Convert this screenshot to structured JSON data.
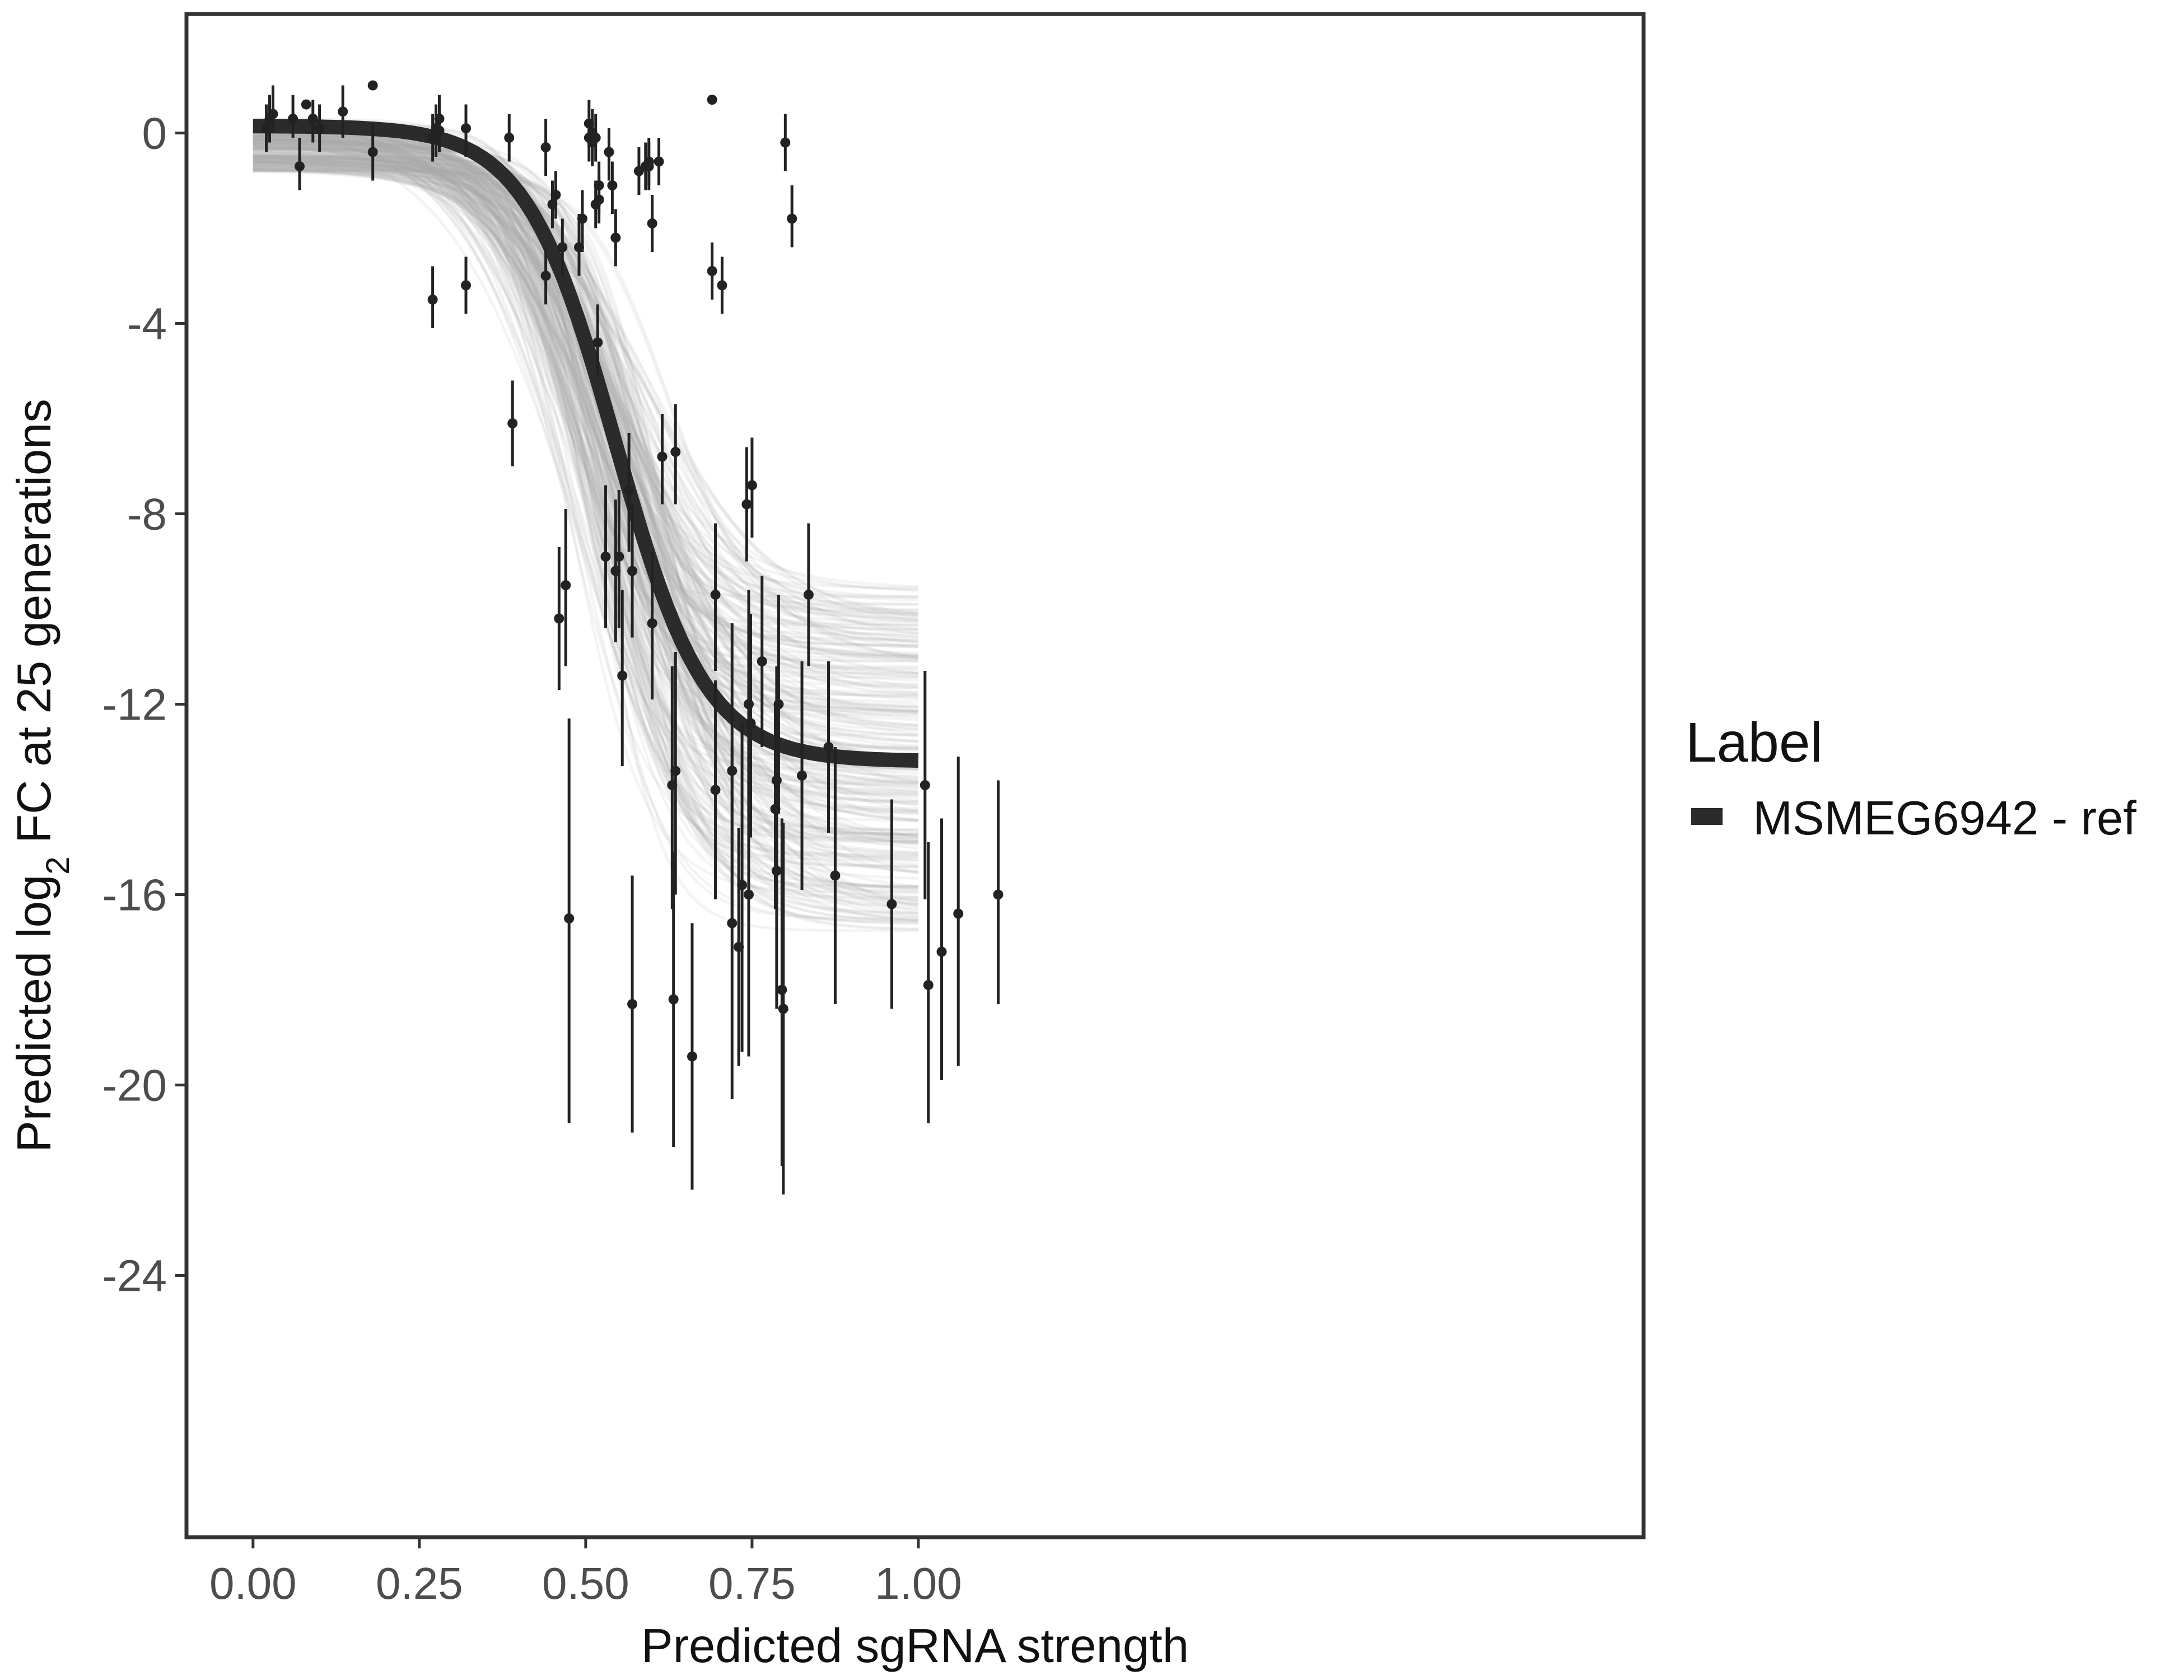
{
  "chart_data": {
    "type": "scatter",
    "xlabel": "Predicted sgRNA strength",
    "ylabel": {
      "prefix": "Predicted  log",
      "subscript": "2",
      "suffix": " FC at 25 generations"
    },
    "xlim": [
      -0.1,
      2.09
    ],
    "ylim": [
      -29.5,
      2.5
    ],
    "x_ticks": [
      0,
      0.25,
      0.5,
      0.75,
      1.0
    ],
    "x_tick_labels": [
      "0.00",
      "0.25",
      "0.50",
      "0.75",
      "1.00"
    ],
    "y_ticks": [
      0,
      -4,
      -8,
      -12,
      -16,
      -20,
      -24
    ],
    "y_tick_labels": [
      "0",
      "-4",
      "-8",
      "-12",
      "-16",
      "-20",
      "-24"
    ],
    "legend": {
      "title": "Label",
      "entries": [
        {
          "label": "MSMEG6942 - ref",
          "color": "#2b2b2b"
        }
      ]
    },
    "fit": {
      "name": "MSMEG6942 - ref",
      "model": "logistic",
      "upper": 0.15,
      "lower": -13.2,
      "midpoint": 0.545,
      "scale": 0.068,
      "x_range": [
        0,
        1.0
      ]
    },
    "posterior_band": {
      "upper_range": [
        -0.8,
        0.3
      ],
      "lower_range": [
        -16.8,
        -9.5
      ],
      "midpoint_range": [
        0.45,
        0.63
      ],
      "scale_range": [
        0.045,
        0.1
      ],
      "color": "#aaaaaa"
    },
    "points": [
      {
        "x": 0.02,
        "y": 0.1,
        "lo": -0.4,
        "hi": 0.6
      },
      {
        "x": 0.025,
        "y": 0.3,
        "lo": -0.2,
        "hi": 0.8
      },
      {
        "x": 0.03,
        "y": 0.4,
        "lo": 0.0,
        "hi": 1.0
      },
      {
        "x": 0.06,
        "y": 0.3,
        "lo": -0.1,
        "hi": 0.8
      },
      {
        "x": 0.07,
        "y": -0.7,
        "lo": -1.2,
        "hi": -0.1
      },
      {
        "x": 0.08,
        "y": 0.6,
        "lo": 0.5,
        "hi": 0.7
      },
      {
        "x": 0.09,
        "y": 0.3,
        "lo": -0.2,
        "hi": 0.7
      },
      {
        "x": 0.1,
        "y": 0.1,
        "lo": -0.4,
        "hi": 0.6
      },
      {
        "x": 0.135,
        "y": 0.45,
        "lo": -0.1,
        "hi": 1.0
      },
      {
        "x": 0.18,
        "y": -0.4,
        "lo": -1.0,
        "hi": 0.2
      },
      {
        "x": 0.18,
        "y": 1.0,
        "lo": 0.9,
        "hi": 1.1
      },
      {
        "x": 0.27,
        "y": -3.5,
        "lo": -4.1,
        "hi": -2.8
      },
      {
        "x": 0.27,
        "y": -0.1,
        "lo": -0.6,
        "hi": 0.4
      },
      {
        "x": 0.275,
        "y": 0.1,
        "lo": -0.5,
        "hi": 0.6
      },
      {
        "x": 0.275,
        "y": -0.1,
        "lo": -0.5,
        "hi": 0.4
      },
      {
        "x": 0.28,
        "y": 0.3,
        "lo": -0.2,
        "hi": 0.8
      },
      {
        "x": 0.28,
        "y": 0.05,
        "lo": -0.4,
        "hi": 0.6
      },
      {
        "x": 0.32,
        "y": -3.2,
        "lo": -3.8,
        "hi": -2.6
      },
      {
        "x": 0.32,
        "y": 0.1,
        "lo": -0.5,
        "hi": 0.6
      },
      {
        "x": 0.385,
        "y": -0.1,
        "lo": -0.6,
        "hi": 0.4
      },
      {
        "x": 0.39,
        "y": -6.1,
        "lo": -7.0,
        "hi": -5.2
      },
      {
        "x": 0.44,
        "y": -3.0,
        "lo": -3.6,
        "hi": -2.4
      },
      {
        "x": 0.44,
        "y": -0.3,
        "lo": -0.9,
        "hi": 0.3
      },
      {
        "x": 0.45,
        "y": -1.5,
        "lo": -2.0,
        "hi": -1.0
      },
      {
        "x": 0.455,
        "y": -1.3,
        "lo": -1.8,
        "hi": -0.8
      },
      {
        "x": 0.46,
        "y": -10.2,
        "lo": -11.7,
        "hi": -8.7
      },
      {
        "x": 0.465,
        "y": -2.4,
        "lo": -3.0,
        "hi": -1.8
      },
      {
        "x": 0.47,
        "y": -9.5,
        "lo": -11.2,
        "hi": -7.9
      },
      {
        "x": 0.475,
        "y": -16.5,
        "lo": -20.8,
        "hi": -12.3
      },
      {
        "x": 0.49,
        "y": -2.4,
        "lo": -3.0,
        "hi": -1.7
      },
      {
        "x": 0.495,
        "y": -1.8,
        "lo": -2.5,
        "hi": -1.2
      },
      {
        "x": 0.505,
        "y": 0.2,
        "lo": -0.3,
        "hi": 0.7
      },
      {
        "x": 0.505,
        "y": -0.1,
        "lo": -0.6,
        "hi": 0.3
      },
      {
        "x": 0.51,
        "y": 0.0,
        "lo": -0.5,
        "hi": 0.5
      },
      {
        "x": 0.51,
        "y": -0.2,
        "lo": -0.7,
        "hi": 0.3
      },
      {
        "x": 0.515,
        "y": -1.5,
        "lo": -2.0,
        "hi": -1.0
      },
      {
        "x": 0.515,
        "y": -0.1,
        "lo": -0.6,
        "hi": 0.4
      },
      {
        "x": 0.518,
        "y": -4.4,
        "lo": -5.1,
        "hi": -3.6
      },
      {
        "x": 0.52,
        "y": -1.1,
        "lo": -1.7,
        "hi": -0.6
      },
      {
        "x": 0.52,
        "y": -1.4,
        "lo": -1.9,
        "hi": -0.9
      },
      {
        "x": 0.53,
        "y": -8.9,
        "lo": -10.4,
        "hi": -7.4
      },
      {
        "x": 0.535,
        "y": -0.4,
        "lo": -1.0,
        "hi": 0.1
      },
      {
        "x": 0.54,
        "y": -1.1,
        "lo": -1.7,
        "hi": -0.6
      },
      {
        "x": 0.545,
        "y": -2.2,
        "lo": -2.8,
        "hi": -1.6
      },
      {
        "x": 0.545,
        "y": -9.2,
        "lo": -10.7,
        "hi": -7.7
      },
      {
        "x": 0.55,
        "y": -8.9,
        "lo": -10.4,
        "hi": -7.5
      },
      {
        "x": 0.555,
        "y": -11.4,
        "lo": -13.3,
        "hi": -9.6
      },
      {
        "x": 0.565,
        "y": -7.5,
        "lo": -8.8,
        "hi": -6.3
      },
      {
        "x": 0.57,
        "y": -9.2,
        "lo": -10.6,
        "hi": -7.8
      },
      {
        "x": 0.57,
        "y": -18.3,
        "lo": -21.0,
        "hi": -15.6
      },
      {
        "x": 0.58,
        "y": -0.8,
        "lo": -1.3,
        "hi": -0.3
      },
      {
        "x": 0.59,
        "y": -0.7,
        "lo": -1.2,
        "hi": -0.2
      },
      {
        "x": 0.595,
        "y": -0.6,
        "lo": -1.1,
        "hi": -0.1
      },
      {
        "x": 0.595,
        "y": -0.7,
        "lo": -1.2,
        "hi": -0.2
      },
      {
        "x": 0.6,
        "y": -1.9,
        "lo": -2.5,
        "hi": -1.3
      },
      {
        "x": 0.6,
        "y": -10.3,
        "lo": -11.9,
        "hi": -8.8
      },
      {
        "x": 0.61,
        "y": -0.6,
        "lo": -1.1,
        "hi": -0.1
      },
      {
        "x": 0.615,
        "y": -6.8,
        "lo": -7.8,
        "hi": -5.9
      },
      {
        "x": 0.63,
        "y": -13.7,
        "lo": -16.3,
        "hi": -11.2
      },
      {
        "x": 0.632,
        "y": -18.2,
        "lo": -21.3,
        "hi": -15.1
      },
      {
        "x": 0.635,
        "y": -13.4,
        "lo": -16.0,
        "hi": -10.9
      },
      {
        "x": 0.635,
        "y": -6.7,
        "lo": -7.8,
        "hi": -5.7
      },
      {
        "x": 0.66,
        "y": -19.4,
        "lo": -22.2,
        "hi": -16.6
      },
      {
        "x": 0.69,
        "y": 0.7,
        "lo": 0.6,
        "hi": 0.8
      },
      {
        "x": 0.69,
        "y": -2.9,
        "lo": -3.5,
        "hi": -2.3
      },
      {
        "x": 0.695,
        "y": -13.8,
        "lo": -16.1,
        "hi": -11.5
      },
      {
        "x": 0.695,
        "y": -9.7,
        "lo": -11.3,
        "hi": -8.2
      },
      {
        "x": 0.705,
        "y": -3.2,
        "lo": -3.8,
        "hi": -2.6
      },
      {
        "x": 0.72,
        "y": -16.6,
        "lo": -20.3,
        "hi": -12.9
      },
      {
        "x": 0.72,
        "y": -13.4,
        "lo": -16.5,
        "hi": -10.3
      },
      {
        "x": 0.73,
        "y": -17.1,
        "lo": -19.6,
        "hi": -14.6
      },
      {
        "x": 0.735,
        "y": -15.8,
        "lo": -19.3,
        "hi": -12.4
      },
      {
        "x": 0.742,
        "y": -7.8,
        "lo": -9.0,
        "hi": -6.6
      },
      {
        "x": 0.745,
        "y": -16.0,
        "lo": -19.4,
        "hi": -12.7
      },
      {
        "x": 0.745,
        "y": -12.0,
        "lo": -14.4,
        "hi": -9.6
      },
      {
        "x": 0.748,
        "y": -12.4,
        "lo": -14.8,
        "hi": -10.1
      },
      {
        "x": 0.75,
        "y": -7.4,
        "lo": -8.5,
        "hi": -6.4
      },
      {
        "x": 0.765,
        "y": -11.1,
        "lo": -12.9,
        "hi": -9.3
      },
      {
        "x": 0.785,
        "y": -14.2,
        "lo": -16.3,
        "hi": -12.0
      },
      {
        "x": 0.787,
        "y": -13.6,
        "lo": -16.0,
        "hi": -11.2
      },
      {
        "x": 0.787,
        "y": -15.5,
        "lo": -18.4,
        "hi": -12.6
      },
      {
        "x": 0.79,
        "y": -12.0,
        "lo": -14.3,
        "hi": -9.7
      },
      {
        "x": 0.795,
        "y": -18.0,
        "lo": -21.7,
        "hi": -14.4
      },
      {
        "x": 0.797,
        "y": -18.4,
        "lo": -22.3,
        "hi": -14.5
      },
      {
        "x": 0.8,
        "y": -0.2,
        "lo": -0.8,
        "hi": 0.4
      },
      {
        "x": 0.81,
        "y": -1.8,
        "lo": -2.4,
        "hi": -1.1
      },
      {
        "x": 0.825,
        "y": -13.5,
        "lo": -15.9,
        "hi": -11.1
      },
      {
        "x": 0.835,
        "y": -9.7,
        "lo": -11.2,
        "hi": -8.2
      },
      {
        "x": 0.865,
        "y": -12.9,
        "lo": -14.7,
        "hi": -11.1
      },
      {
        "x": 0.875,
        "y": -15.6,
        "lo": -18.3,
        "hi": -12.9
      },
      {
        "x": 0.96,
        "y": -16.2,
        "lo": -18.4,
        "hi": -14.0
      },
      {
        "x": 1.01,
        "y": -13.7,
        "lo": -16.1,
        "hi": -11.3
      },
      {
        "x": 1.015,
        "y": -17.9,
        "lo": -20.8,
        "hi": -14.9
      },
      {
        "x": 1.035,
        "y": -17.2,
        "lo": -19.9,
        "hi": -14.4
      },
      {
        "x": 1.06,
        "y": -16.4,
        "lo": -19.6,
        "hi": -13.1
      },
      {
        "x": 1.12,
        "y": -16.0,
        "lo": -18.3,
        "hi": -13.6
      }
    ]
  }
}
